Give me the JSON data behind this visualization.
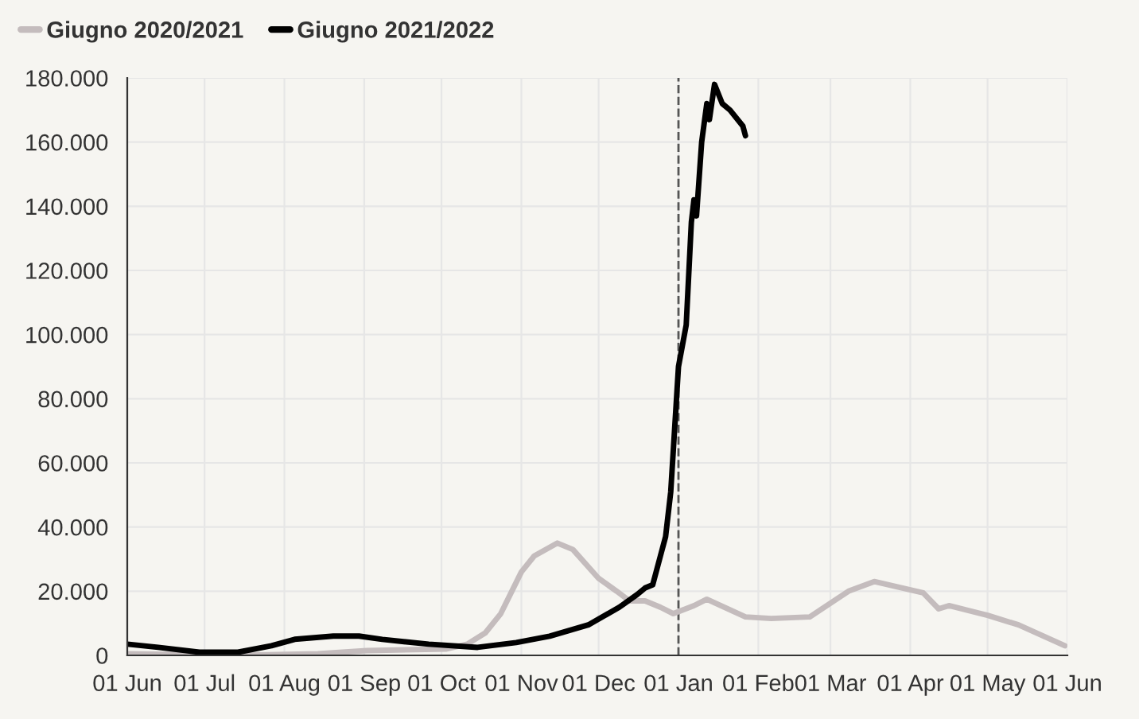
{
  "chart_data": {
    "type": "line",
    "series": [
      {
        "name": "Giugno 2020/2021",
        "color": "#c4bcbd",
        "x": [
          "2020-06-01",
          "2020-07-14",
          "2020-08-14",
          "2020-09-02",
          "2020-10-03",
          "2020-10-11",
          "2020-10-18",
          "2020-10-24",
          "2020-11-01",
          "2020-11-06",
          "2020-11-15",
          "2020-11-21",
          "2020-12-01",
          "2020-12-08",
          "2020-12-13",
          "2020-12-19",
          "2020-12-25",
          "2020-12-30",
          "2021-01-07",
          "2021-01-12",
          "2021-01-27",
          "2021-02-06",
          "2021-02-21",
          "2021-03-08",
          "2021-03-18",
          "2021-04-06",
          "2021-04-12",
          "2021-04-16",
          "2021-05-01",
          "2021-05-13",
          "2021-05-31"
        ],
        "values": [
          500,
          0,
          500,
          1500,
          2000,
          3500,
          7000,
          13000,
          26000,
          31000,
          35000,
          33000,
          24000,
          20000,
          17000,
          17000,
          15000,
          13000,
          15500,
          17500,
          12000,
          11500,
          12000,
          20000,
          23000,
          19500,
          14500,
          15500,
          12500,
          9500,
          3000
        ]
      },
      {
        "name": "Giugno 2021/2022",
        "color": "#000000",
        "x": [
          "2020-06-01",
          "2020-06-13",
          "2020-06-29",
          "2020-07-14",
          "2020-07-27",
          "2020-08-05",
          "2020-08-20",
          "2020-08-30",
          "2020-09-08",
          "2020-09-26",
          "2020-10-15",
          "2020-10-30",
          "2020-11-12",
          "2020-11-27",
          "2020-12-09",
          "2020-12-16",
          "2020-12-19",
          "2020-12-22",
          "2020-12-25",
          "2020-12-27",
          "2020-12-29",
          "2021-01-01",
          "2021-01-04",
          "2021-01-06",
          "2021-01-07",
          "2021-01-08",
          "2021-01-10",
          "2021-01-12",
          "2021-01-13",
          "2021-01-15",
          "2021-01-18",
          "2021-01-21",
          "2021-01-26",
          "2021-01-27"
        ],
        "values": [
          3500,
          2500,
          1000,
          1000,
          3000,
          5000,
          6000,
          6000,
          5000,
          3500,
          2500,
          4000,
          6000,
          9500,
          15000,
          19000,
          21000,
          22000,
          31000,
          37000,
          51000,
          90000,
          103000,
          135000,
          142000,
          137000,
          160000,
          172000,
          167000,
          178000,
          172000,
          170000,
          165000,
          162000
        ]
      }
    ],
    "xlim": [
      "2020-06-01",
      "2021-06-01"
    ],
    "xticks": [
      {
        "value": "2020-06-01",
        "label": "01 Jun"
      },
      {
        "value": "2020-07-01",
        "label": "01 Jul"
      },
      {
        "value": "2020-08-01",
        "label": "01 Aug"
      },
      {
        "value": "2020-09-01",
        "label": "01 Sep"
      },
      {
        "value": "2020-10-01",
        "label": "01 Oct"
      },
      {
        "value": "2020-11-01",
        "label": "01 Nov"
      },
      {
        "value": "2020-12-01",
        "label": "01 Dec"
      },
      {
        "value": "2021-01-01",
        "label": "01 Jan"
      },
      {
        "value": "2021-02-01",
        "label": "01 Feb"
      },
      {
        "value": "2021-03-01",
        "label": "01 Mar"
      },
      {
        "value": "2021-04-01",
        "label": "01 Apr"
      },
      {
        "value": "2021-05-01",
        "label": "01 May"
      },
      {
        "value": "2021-06-01",
        "label": "01 Jun"
      }
    ],
    "ylim": [
      0,
      180000
    ],
    "yticks": [
      {
        "value": 0,
        "label": "0"
      },
      {
        "value": 20000,
        "label": "20.000"
      },
      {
        "value": 40000,
        "label": "40.000"
      },
      {
        "value": 60000,
        "label": "60.000"
      },
      {
        "value": 80000,
        "label": "80.000"
      },
      {
        "value": 100000,
        "label": "100.000"
      },
      {
        "value": 120000,
        "label": "120.000"
      },
      {
        "value": 140000,
        "label": "140.000"
      },
      {
        "value": 160000,
        "label": "160.000"
      },
      {
        "value": 180000,
        "label": "180.000"
      }
    ],
    "ref_lines": [
      {
        "axis": "x",
        "value": "2021-01-01",
        "color": "#555555",
        "line_style": "dashed"
      }
    ],
    "grid": true,
    "legend": "top left",
    "marker": "none",
    "line_style": "solid"
  }
}
